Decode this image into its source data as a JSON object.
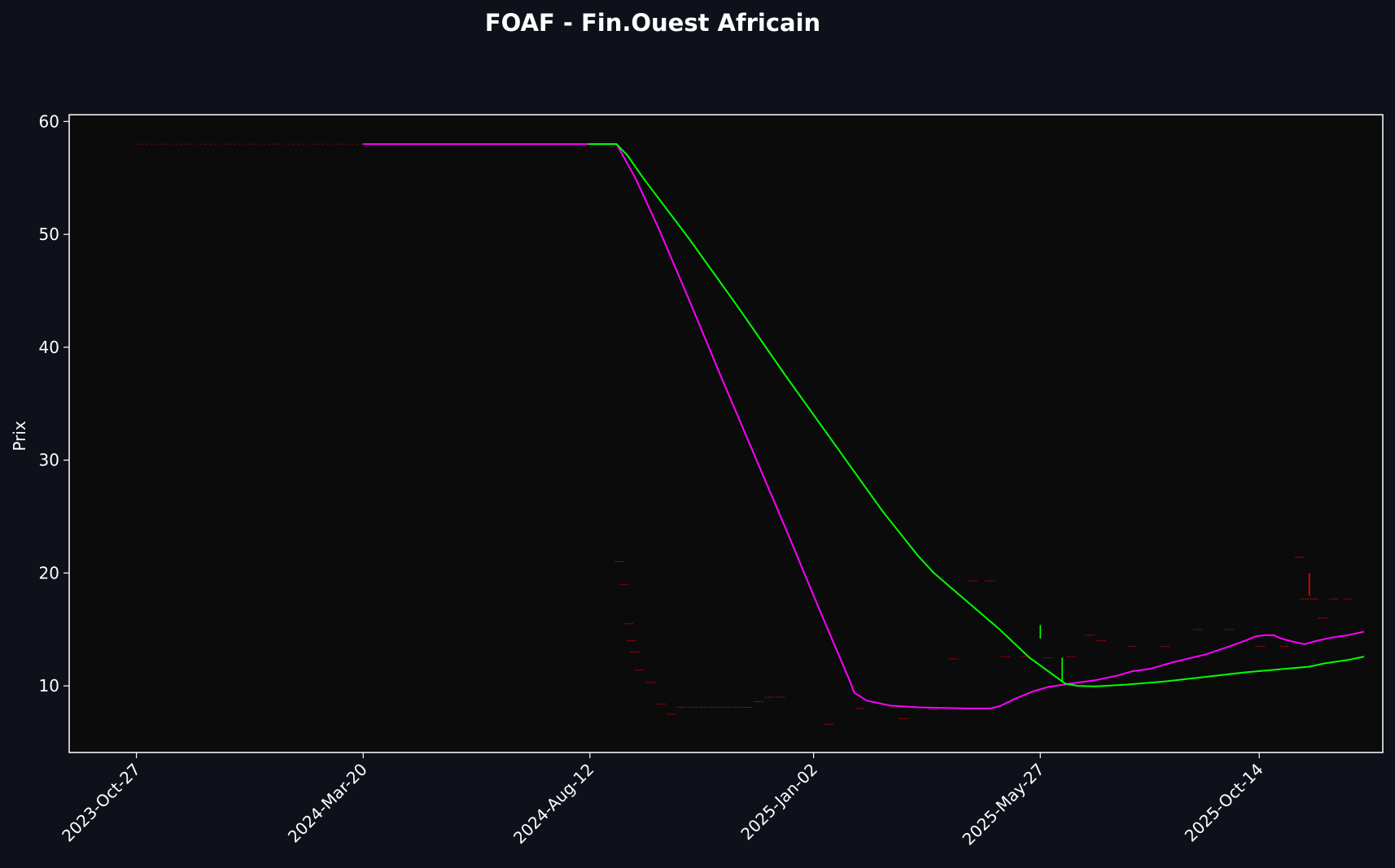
{
  "chart_data": {
    "type": "line",
    "title": "FOAF - Fin.Ouest Africain",
    "xlabel": "",
    "ylabel": "Prix",
    "x_tick_labels": [
      "2023-Oct-27",
      "2024-Mar-20",
      "2024-Aug-12",
      "2025-Jan-02",
      "2025-May-27",
      "2025-Oct-14"
    ],
    "x_tick_dates": [
      "2023-10-27",
      "2024-03-20",
      "2024-08-12",
      "2025-01-02",
      "2025-05-27",
      "2025-10-14"
    ],
    "xlim": [
      "2023-09-14",
      "2026-01-01"
    ],
    "y_ticks": [
      10,
      20,
      30,
      40,
      50,
      60
    ],
    "ylim": [
      4.1,
      60.6
    ],
    "grid": false,
    "colors": {
      "background": "#0e111a",
      "plot_background": "#0b0b0b",
      "axes": "#ffffff",
      "candle_down": "#ff0000",
      "candle_up": "#00ff00"
    },
    "series": [
      {
        "color": "#ff00ff",
        "points": [
          [
            "2024-03-20",
            58.0
          ],
          [
            "2024-08-12",
            58.0
          ],
          [
            "2024-08-29",
            58.0
          ],
          [
            "2024-09-10",
            55.0
          ],
          [
            "2024-09-25",
            50.5
          ],
          [
            "2024-10-15",
            44.0
          ],
          [
            "2024-11-05",
            37.0
          ],
          [
            "2024-11-25",
            30.5
          ],
          [
            "2024-12-15",
            24.0
          ],
          [
            "2025-01-05",
            17.0
          ],
          [
            "2025-01-25",
            10.5
          ],
          [
            "2025-01-28",
            9.4
          ],
          [
            "2025-02-05",
            8.7
          ],
          [
            "2025-02-20",
            8.25
          ],
          [
            "2025-03-10",
            8.1
          ],
          [
            "2025-04-10",
            8.0
          ],
          [
            "2025-04-25",
            8.0
          ],
          [
            "2025-05-01",
            8.2
          ],
          [
            "2025-05-10",
            8.8
          ],
          [
            "2025-05-22",
            9.5
          ],
          [
            "2025-06-01",
            9.9
          ],
          [
            "2025-06-15",
            10.2
          ],
          [
            "2025-07-01",
            10.5
          ],
          [
            "2025-07-15",
            10.9
          ],
          [
            "2025-07-25",
            11.3
          ],
          [
            "2025-08-05",
            11.5
          ],
          [
            "2025-08-20",
            12.1
          ],
          [
            "2025-09-10",
            12.8
          ],
          [
            "2025-09-25",
            13.5
          ],
          [
            "2025-10-05",
            14.0
          ],
          [
            "2025-10-12",
            14.4
          ],
          [
            "2025-10-18",
            14.5
          ],
          [
            "2025-10-23",
            14.5
          ],
          [
            "2025-10-28",
            14.2
          ],
          [
            "2025-11-05",
            13.9
          ],
          [
            "2025-11-12",
            13.7
          ],
          [
            "2025-11-20",
            14.0
          ],
          [
            "2025-11-30",
            14.3
          ],
          [
            "2025-12-10",
            14.5
          ],
          [
            "2025-12-20",
            14.8
          ]
        ]
      },
      {
        "color": "#00ff00",
        "points": [
          [
            "2024-08-11",
            58.0
          ],
          [
            "2024-08-29",
            58.0
          ],
          [
            "2024-09-05",
            57.0
          ],
          [
            "2024-09-15",
            55.0
          ],
          [
            "2024-10-15",
            49.5
          ],
          [
            "2024-11-15",
            43.5
          ],
          [
            "2024-12-15",
            37.5
          ],
          [
            "2025-01-15",
            31.5
          ],
          [
            "2025-02-15",
            25.5
          ],
          [
            "2025-03-10",
            21.5
          ],
          [
            "2025-03-20",
            20.0
          ],
          [
            "2025-04-10",
            17.5
          ],
          [
            "2025-05-01",
            15.0
          ],
          [
            "2025-05-20",
            12.5
          ],
          [
            "2025-06-12",
            10.2
          ],
          [
            "2025-06-20",
            10.0
          ],
          [
            "2025-07-01",
            9.95
          ],
          [
            "2025-07-20",
            10.1
          ],
          [
            "2025-08-15",
            10.4
          ],
          [
            "2025-09-10",
            10.8
          ],
          [
            "2025-10-05",
            11.2
          ],
          [
            "2025-10-30",
            11.5
          ],
          [
            "2025-11-15",
            11.7
          ],
          [
            "2025-11-25",
            12.0
          ],
          [
            "2025-12-10",
            12.3
          ],
          [
            "2025-12-20",
            12.6
          ]
        ]
      }
    ],
    "candles": [
      {
        "date": "2024-08-31",
        "high": 21.0,
        "low": 21.0,
        "up": false
      },
      {
        "date": "2024-09-03",
        "high": 19.0,
        "low": 19.0,
        "up": false
      },
      {
        "date": "2024-09-06",
        "high": 15.5,
        "low": 15.5,
        "up": false
      },
      {
        "date": "2024-09-08",
        "high": 14.0,
        "low": 14.0,
        "up": false
      },
      {
        "date": "2024-09-10",
        "high": 13.0,
        "low": 13.0,
        "up": false
      },
      {
        "date": "2024-09-13",
        "high": 11.4,
        "low": 11.4,
        "up": false
      },
      {
        "date": "2024-09-20",
        "high": 10.3,
        "low": 10.3,
        "up": false
      },
      {
        "date": "2024-09-27",
        "high": 8.4,
        "low": 8.4,
        "up": false
      },
      {
        "date": "2024-10-03",
        "high": 7.5,
        "low": 7.5,
        "up": false
      },
      {
        "date": "2024-10-10",
        "high": 8.1,
        "low": 8.1,
        "up": false
      },
      {
        "date": "2024-10-17",
        "high": 8.1,
        "low": 8.1,
        "up": false
      },
      {
        "date": "2024-10-24",
        "high": 8.1,
        "low": 8.1,
        "up": false
      },
      {
        "date": "2024-10-31",
        "high": 8.1,
        "low": 8.1,
        "up": false
      },
      {
        "date": "2024-11-07",
        "high": 8.1,
        "low": 8.1,
        "up": false
      },
      {
        "date": "2024-11-14",
        "high": 8.1,
        "low": 8.1,
        "up": false
      },
      {
        "date": "2024-11-21",
        "high": 8.1,
        "low": 8.1,
        "up": false
      },
      {
        "date": "2024-11-28",
        "high": 8.6,
        "low": 8.6,
        "up": false
      },
      {
        "date": "2024-12-05",
        "high": 9.0,
        "low": 9.0,
        "up": false
      },
      {
        "date": "2024-12-12",
        "high": 9.0,
        "low": 9.0,
        "up": false
      },
      {
        "date": "2025-01-12",
        "high": 6.6,
        "low": 6.6,
        "up": false
      },
      {
        "date": "2025-02-01",
        "high": 8.0,
        "low": 8.0,
        "up": false
      },
      {
        "date": "2025-03-01",
        "high": 7.1,
        "low": 7.1,
        "up": false
      },
      {
        "date": "2025-03-20",
        "high": 7.9,
        "low": 7.9,
        "up": false
      },
      {
        "date": "2025-04-02",
        "high": 12.4,
        "low": 12.4,
        "up": false
      },
      {
        "date": "2025-04-14",
        "high": 19.3,
        "low": 19.3,
        "up": false
      },
      {
        "date": "2025-04-25",
        "high": 19.3,
        "low": 19.3,
        "up": false
      },
      {
        "date": "2025-05-05",
        "high": 12.6,
        "low": 12.6,
        "up": false
      },
      {
        "date": "2025-05-18",
        "high": 12.6,
        "low": 12.6,
        "up": false
      },
      {
        "date": "2025-05-27",
        "high": 15.4,
        "low": 14.2,
        "up": true
      },
      {
        "date": "2025-06-01",
        "high": 12.5,
        "low": 12.5,
        "up": false
      },
      {
        "date": "2025-06-10",
        "high": 12.5,
        "low": 10.3,
        "up": true
      },
      {
        "date": "2025-06-16",
        "high": 12.6,
        "low": 12.6,
        "up": false
      },
      {
        "date": "2025-06-28",
        "high": 14.5,
        "low": 14.5,
        "up": false
      },
      {
        "date": "2025-07-05",
        "high": 14.0,
        "low": 14.0,
        "up": false
      },
      {
        "date": "2025-07-25",
        "high": 13.5,
        "low": 13.5,
        "up": false
      },
      {
        "date": "2025-08-15",
        "high": 13.5,
        "low": 13.5,
        "up": false
      },
      {
        "date": "2025-09-05",
        "high": 15.0,
        "low": 15.0,
        "up": false
      },
      {
        "date": "2025-09-25",
        "high": 15.0,
        "low": 15.0,
        "up": false
      },
      {
        "date": "2025-10-15",
        "high": 13.5,
        "low": 13.5,
        "up": false
      },
      {
        "date": "2025-10-30",
        "high": 13.5,
        "low": 13.5,
        "up": false
      },
      {
        "date": "2025-11-09",
        "high": 21.4,
        "low": 21.4,
        "up": false
      },
      {
        "date": "2025-11-12",
        "high": 17.7,
        "low": 17.7,
        "up": false
      },
      {
        "date": "2025-11-15",
        "high": 20.0,
        "low": 18.0,
        "up": false
      },
      {
        "date": "2025-11-18",
        "high": 17.7,
        "low": 17.7,
        "up": false
      },
      {
        "date": "2025-11-24",
        "high": 16.0,
        "low": 16.0,
        "up": false
      },
      {
        "date": "2025-12-01",
        "high": 17.7,
        "low": 17.7,
        "up": false
      },
      {
        "date": "2025-12-10",
        "high": 17.7,
        "low": 17.7,
        "up": false
      }
    ],
    "baseline_segments": [
      {
        "start": "2023-10-27",
        "end": "2024-03-20",
        "value": 58.0
      }
    ]
  }
}
